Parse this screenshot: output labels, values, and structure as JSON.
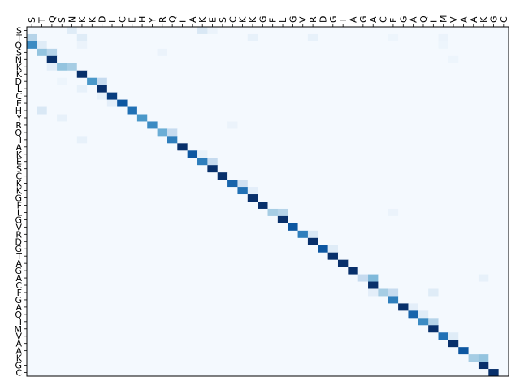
{
  "chart_data": {
    "type": "heatmap",
    "title": "",
    "xlabel": "",
    "ylabel": "",
    "x_tick_position": "top",
    "colormap": "Blues",
    "grid": false,
    "legend": "none",
    "value_range": [
      0,
      1
    ],
    "x_labels": [
      "S",
      "T",
      "Q",
      "S",
      "N",
      "K",
      "K",
      "D",
      "L",
      "C",
      "E",
      "H",
      "Y",
      "R",
      "Q",
      "I",
      "A",
      "K",
      "E",
      "S",
      "C",
      "K",
      "K",
      "G",
      "F",
      "L",
      "G",
      "V",
      "R",
      "D",
      "G",
      "T",
      "A",
      "G",
      "A",
      "C",
      "F",
      "G",
      "A",
      "Q",
      "I",
      "M",
      "V",
      "A",
      "A",
      "K",
      "G",
      "C"
    ],
    "y_labels": [
      "S",
      "T",
      "Q",
      "S",
      "N",
      "K",
      "K",
      "D",
      "L",
      "C",
      "E",
      "H",
      "Y",
      "R",
      "Q",
      "I",
      "A",
      "K",
      "E",
      "S",
      "C",
      "K",
      "K",
      "G",
      "F",
      "L",
      "G",
      "V",
      "R",
      "D",
      "G",
      "T",
      "A",
      "G",
      "A",
      "C",
      "F",
      "G",
      "A",
      "Q",
      "I",
      "M",
      "V",
      "A",
      "A",
      "K",
      "G",
      "C"
    ],
    "background_value": 0.015,
    "cells": [
      [
        0,
        4,
        0.12
      ],
      [
        0,
        17,
        0.15
      ],
      [
        0,
        18,
        0.06
      ],
      [
        1,
        0,
        0.3
      ],
      [
        1,
        5,
        0.12
      ],
      [
        1,
        22,
        0.08
      ],
      [
        1,
        28,
        0.08
      ],
      [
        1,
        36,
        0.05
      ],
      [
        1,
        41,
        0.06
      ],
      [
        2,
        0,
        0.65
      ],
      [
        2,
        1,
        0.12
      ],
      [
        2,
        5,
        0.06
      ],
      [
        2,
        41,
        0.05
      ],
      [
        3,
        1,
        0.4
      ],
      [
        3,
        2,
        0.3
      ],
      [
        3,
        13,
        0.06
      ],
      [
        4,
        2,
        1.0
      ],
      [
        4,
        42,
        0.05
      ],
      [
        5,
        2,
        0.1
      ],
      [
        5,
        3,
        0.4
      ],
      [
        5,
        4,
        0.35
      ],
      [
        6,
        5,
        1.0
      ],
      [
        7,
        3,
        0.05
      ],
      [
        7,
        6,
        0.6
      ],
      [
        7,
        7,
        0.25
      ],
      [
        8,
        5,
        0.08
      ],
      [
        8,
        7,
        1.0
      ],
      [
        9,
        7,
        0.08
      ],
      [
        9,
        8,
        0.95
      ],
      [
        10,
        8,
        0.1
      ],
      [
        10,
        9,
        0.85
      ],
      [
        11,
        1,
        0.15
      ],
      [
        11,
        10,
        0.75
      ],
      [
        12,
        11,
        0.6
      ],
      [
        12,
        3,
        0.08
      ],
      [
        13,
        12,
        0.65
      ],
      [
        13,
        20,
        0.06
      ],
      [
        14,
        13,
        0.5
      ],
      [
        14,
        14,
        0.25
      ],
      [
        15,
        14,
        0.7
      ],
      [
        15,
        5,
        0.08
      ],
      [
        16,
        15,
        1.0
      ],
      [
        17,
        16,
        0.85
      ],
      [
        17,
        17,
        0.08
      ],
      [
        18,
        17,
        0.7
      ],
      [
        18,
        18,
        0.25
      ],
      [
        19,
        18,
        1.0
      ],
      [
        20,
        19,
        1.0
      ],
      [
        21,
        20,
        0.8
      ],
      [
        21,
        21,
        0.2
      ],
      [
        22,
        21,
        0.75
      ],
      [
        22,
        22,
        0.1
      ],
      [
        23,
        22,
        1.0
      ],
      [
        24,
        23,
        1.0
      ],
      [
        25,
        24,
        0.35
      ],
      [
        25,
        25,
        0.3
      ],
      [
        25,
        36,
        0.06
      ],
      [
        26,
        25,
        1.0
      ],
      [
        27,
        26,
        0.85
      ],
      [
        28,
        27,
        0.7
      ],
      [
        28,
        28,
        0.15
      ],
      [
        29,
        28,
        1.0
      ],
      [
        30,
        29,
        0.85
      ],
      [
        30,
        30,
        0.12
      ],
      [
        31,
        30,
        1.0
      ],
      [
        32,
        31,
        1.0
      ],
      [
        33,
        32,
        1.0
      ],
      [
        34,
        33,
        0.25
      ],
      [
        34,
        34,
        0.45
      ],
      [
        34,
        45,
        0.08
      ],
      [
        35,
        34,
        1.0
      ],
      [
        36,
        34,
        0.1
      ],
      [
        36,
        35,
        0.35
      ],
      [
        36,
        36,
        0.25
      ],
      [
        36,
        40,
        0.12
      ],
      [
        37,
        36,
        0.7
      ],
      [
        38,
        37,
        1.0
      ],
      [
        38,
        38,
        0.1
      ],
      [
        39,
        38,
        0.8
      ],
      [
        39,
        39,
        0.12
      ],
      [
        40,
        39,
        0.65
      ],
      [
        40,
        40,
        0.3
      ],
      [
        41,
        40,
        1.0
      ],
      [
        42,
        41,
        0.75
      ],
      [
        42,
        42,
        0.12
      ],
      [
        43,
        42,
        1.0
      ],
      [
        44,
        43,
        0.85
      ],
      [
        45,
        44,
        0.35
      ],
      [
        45,
        45,
        0.4
      ],
      [
        46,
        45,
        1.0
      ],
      [
        47,
        46,
        1.0
      ]
    ]
  }
}
